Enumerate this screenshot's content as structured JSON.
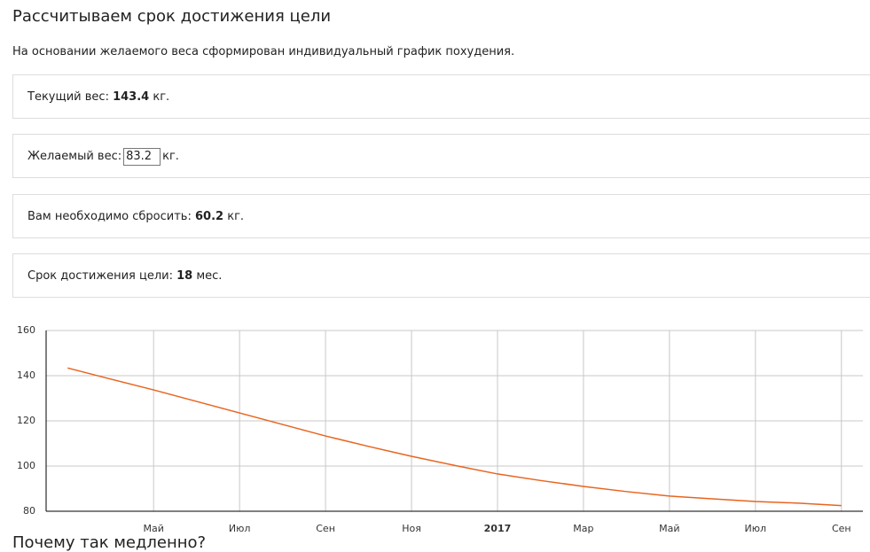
{
  "header": {
    "title": "Рассчитываем срок достижения цели",
    "subtitle": "На основании желаемого веса сформирован индивидуальный график похудения."
  },
  "cards": [
    {
      "label": "Текущий вес:",
      "value": 143.4,
      "unit": "кг."
    },
    {
      "label": "Желаемый вес:",
      "input_value": 83.2,
      "unit": "кг."
    },
    {
      "label": "Вам необходимо сбросить:",
      "value": 60.2,
      "unit": "кг."
    },
    {
      "label": "Срок достижения цели:",
      "value": 18,
      "unit": "мес."
    }
  ],
  "chart_data": {
    "type": "line",
    "color": "#e8641e",
    "x": [
      0,
      1,
      2,
      3,
      4,
      5,
      6,
      7,
      8,
      9,
      10,
      11,
      12,
      13,
      14,
      15,
      16,
      17,
      18
    ],
    "values": [
      143.4,
      138.5,
      133.7,
      128.6,
      123.5,
      118.4,
      113.3,
      108.7,
      104.3,
      100.3,
      96.5,
      93.6,
      91,
      88.7,
      86.7,
      85.5,
      84.3,
      83.6,
      82.5
    ],
    "xlim": [
      -0.5,
      18.5
    ],
    "xticks": [
      {
        "value": 2,
        "label": "Май"
      },
      {
        "value": 4,
        "label": "Июл"
      },
      {
        "value": 6,
        "label": "Сен"
      },
      {
        "value": 8,
        "label": "Ноя"
      },
      {
        "value": 10,
        "label": "2017",
        "bold": true
      },
      {
        "value": 12,
        "label": "Мар"
      },
      {
        "value": 14,
        "label": "Май"
      },
      {
        "value": 16,
        "label": "Июл"
      },
      {
        "value": 18,
        "label": "Сен"
      }
    ],
    "ylim": [
      80,
      160
    ],
    "yticks": [
      80,
      100,
      120,
      140,
      160
    ],
    "grid": true
  },
  "footer": {
    "heading": "Почему так медленно?"
  }
}
